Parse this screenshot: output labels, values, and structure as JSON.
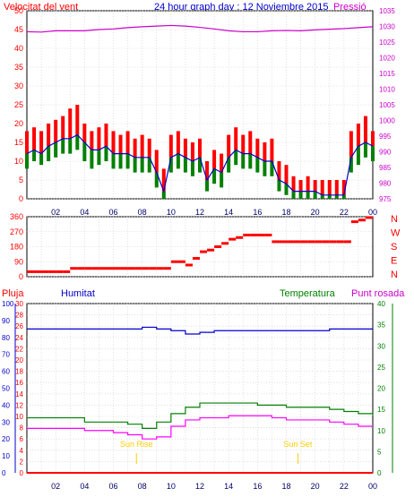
{
  "header": {
    "left_label": "Velocitat del vent",
    "center_title": "24 hour graph day : 12 Noviembre 2015",
    "right_label": "Pressió"
  },
  "bottom_header": {
    "rain_label": "Pluja",
    "humidity_label": "Humitat",
    "temperature_label": "Temperatura",
    "dewpoint_label": "Punt rosada"
  },
  "colors": {
    "wind": "#ff0000",
    "gust_high": "#ff0000",
    "wind_avg": "#0000cc",
    "wind_low": "#008000",
    "pressure": "#cc00cc",
    "direction": "#ff0000",
    "humidity": "#0000cc",
    "temperature": "#008000",
    "dewpoint": "#ff00ff",
    "rain": "#ff0000",
    "sun": "#ffcc00",
    "grid": "#cccccc"
  },
  "chart_data": [
    {
      "type": "line",
      "title": "24 hour graph day : 12 Noviembre 2015",
      "left_axis": {
        "label": "Velocitat del vent",
        "ylim": [
          0,
          50
        ],
        "ticks": [
          0,
          5,
          10,
          15,
          20,
          25,
          30,
          35,
          40,
          45,
          50
        ]
      },
      "right_axis": {
        "label": "Pressió",
        "ylim": [
          975,
          1035
        ],
        "ticks": [
          975,
          980,
          985,
          990,
          995,
          1000,
          1005,
          1010,
          1015,
          1020,
          1025,
          1030,
          1035
        ]
      },
      "x_ticks": [
        "02",
        "04",
        "06",
        "08",
        "10",
        "12",
        "14",
        "16",
        "18",
        "20",
        "22",
        "00"
      ],
      "series": [
        {
          "name": "",
          "key": "gust",
          "x": [
            0,
            0.5,
            1,
            1.5,
            2,
            2.5,
            3,
            3.5,
            4,
            4.5,
            5,
            5.5,
            6,
            6.5,
            7,
            7.5,
            8,
            8.5,
            9,
            9.5,
            10,
            10.5,
            11,
            11.5,
            12,
            12.5,
            13,
            13.5,
            14,
            14.5,
            15,
            15.5,
            16,
            16.5,
            17,
            17.5,
            18,
            18.5,
            19,
            19.5,
            20,
            20.5,
            21,
            21.5,
            22,
            22.5,
            23,
            23.5,
            24
          ],
          "y": [
            18,
            19,
            18,
            20,
            21,
            22,
            24,
            25,
            20,
            18,
            19,
            20,
            18,
            17,
            18,
            16,
            17,
            16,
            13,
            8,
            17,
            18,
            16,
            15,
            16,
            10,
            13,
            12,
            17,
            19,
            17,
            18,
            16,
            15,
            16,
            10,
            9,
            6,
            5,
            6,
            5,
            5,
            5,
            5,
            5,
            18,
            20,
            22,
            18
          ]
        },
        {
          "name": "",
          "key": "avg",
          "x": [
            0,
            0.5,
            1,
            1.5,
            2,
            2.5,
            3,
            3.5,
            4,
            4.5,
            5,
            5.5,
            6,
            6.5,
            7,
            7.5,
            8,
            8.5,
            9,
            9.5,
            10,
            10.5,
            11,
            11.5,
            12,
            12.5,
            13,
            13.5,
            14,
            14.5,
            15,
            15.5,
            16,
            16.5,
            17,
            17.5,
            18,
            18.5,
            19,
            19.5,
            20,
            20.5,
            21,
            21.5,
            22,
            22.5,
            23,
            23.5,
            24
          ],
          "y": [
            12,
            13,
            12,
            14,
            15,
            16,
            16,
            17,
            15,
            13,
            13,
            14,
            12,
            12,
            12,
            11,
            11,
            11,
            7,
            2,
            11,
            12,
            11,
            10,
            11,
            5,
            8,
            7,
            11,
            13,
            12,
            12,
            11,
            10,
            10,
            5,
            4,
            2,
            2,
            2,
            2,
            1,
            1,
            1,
            1,
            11,
            14,
            15,
            14
          ]
        },
        {
          "name": "",
          "key": "low",
          "x": [
            0,
            0.5,
            1,
            1.5,
            2,
            2.5,
            3,
            3.5,
            4,
            4.5,
            5,
            5.5,
            6,
            6.5,
            7,
            7.5,
            8,
            8.5,
            9,
            9.5,
            10,
            10.5,
            11,
            11.5,
            12,
            12.5,
            13,
            13.5,
            14,
            14.5,
            15,
            15.5,
            16,
            16.5,
            17,
            17.5,
            18,
            18.5,
            19,
            19.5,
            20,
            20.5,
            21,
            21.5,
            22,
            22.5,
            23,
            23.5,
            24
          ],
          "y": [
            8,
            10,
            9,
            10,
            11,
            12,
            12,
            13,
            10,
            8,
            9,
            10,
            8,
            8,
            8,
            7,
            7,
            7,
            3,
            0,
            7,
            8,
            7,
            6,
            7,
            2,
            4,
            3,
            7,
            9,
            8,
            8,
            7,
            6,
            6,
            2,
            1,
            0,
            0,
            0,
            0,
            0,
            0,
            0,
            0,
            7,
            9,
            11,
            10
          ]
        },
        {
          "name": "",
          "key": "pressure",
          "x": [
            0,
            1,
            2,
            3,
            4,
            5,
            6,
            7,
            8,
            9,
            10,
            11,
            12,
            13,
            14,
            15,
            16,
            17,
            18,
            19,
            20,
            21,
            22,
            23,
            24
          ],
          "y": [
            1028.3,
            1028.2,
            1028.6,
            1028.6,
            1028.6,
            1029.0,
            1029.2,
            1029.6,
            1029.9,
            1030.1,
            1030.3,
            1030.1,
            1029.7,
            1029.2,
            1028.6,
            1028.3,
            1028.3,
            1028.6,
            1028.7,
            1028.6,
            1028.9,
            1029.1,
            1029.3,
            1029.6,
            1029.9
          ]
        }
      ]
    },
    {
      "type": "scatter",
      "title": "",
      "left_axis": {
        "ylim": [
          0,
          360
        ],
        "ticks": [
          0,
          90,
          180,
          270,
          360
        ]
      },
      "right_axis": {
        "labels": [
          "N",
          "W",
          "S",
          "E",
          "N"
        ]
      },
      "series": [
        {
          "name": "",
          "key": "direction",
          "x": [
            0,
            0.5,
            1,
            1.5,
            2,
            2.5,
            3,
            3.5,
            4,
            4.5,
            5,
            5.5,
            6,
            6.5,
            7,
            7.5,
            8,
            8.5,
            9,
            9.5,
            10,
            10.5,
            11,
            11.5,
            12,
            12.5,
            13,
            13.5,
            14,
            14.5,
            15,
            15.5,
            16,
            16.5,
            17,
            17.5,
            18,
            18.5,
            19,
            19.5,
            20,
            20.5,
            21,
            21.5,
            22,
            22.5,
            23,
            23.5,
            24
          ],
          "y": [
            30,
            30,
            30,
            30,
            30,
            30,
            50,
            50,
            50,
            50,
            50,
            50,
            50,
            50,
            50,
            50,
            50,
            50,
            50,
            50,
            90,
            90,
            70,
            110,
            150,
            160,
            180,
            200,
            225,
            235,
            250,
            250,
            250,
            250,
            210,
            210,
            210,
            210,
            210,
            210,
            210,
            210,
            210,
            210,
            210,
            330,
            340,
            355,
            360
          ]
        }
      ]
    },
    {
      "type": "line",
      "title": "",
      "left_axis_rain": {
        "label": "Pluja",
        "ylim": [
          0,
          30
        ],
        "ticks": [
          0,
          2,
          4,
          6,
          8,
          10,
          12,
          14,
          16,
          18,
          20,
          22,
          24,
          26,
          28,
          30
        ]
      },
      "left_axis_humidity": {
        "label": "Humitat",
        "ylim": [
          0,
          100
        ],
        "ticks": [
          0,
          10,
          20,
          30,
          40,
          50,
          60,
          70,
          80,
          90,
          100
        ]
      },
      "right_axis": {
        "label": "Temperatura",
        "ylim": [
          0,
          40
        ],
        "ticks": [
          0,
          5,
          10,
          15,
          20,
          25,
          30,
          35,
          40
        ]
      },
      "annotations": [
        "Sun Rise",
        "Sun Set"
      ],
      "annotation_x": [
        7.6,
        18.8
      ],
      "series": [
        {
          "name": "Humitat",
          "key": "humidity",
          "x": [
            0,
            1,
            2,
            3,
            4,
            5,
            6,
            7,
            8,
            9,
            10,
            11,
            12,
            13,
            14,
            15,
            16,
            17,
            18,
            19,
            20,
            21,
            22,
            23,
            24
          ],
          "y": [
            85,
            85,
            85,
            85,
            85,
            85,
            85,
            85,
            86,
            85,
            84,
            82,
            83,
            84,
            84,
            84,
            84,
            84,
            84,
            84,
            84,
            85,
            85,
            85,
            85
          ]
        },
        {
          "name": "Temperatura",
          "key": "temperature",
          "x": [
            0,
            1,
            2,
            3,
            4,
            5,
            6,
            7,
            8,
            9,
            10,
            11,
            12,
            13,
            14,
            15,
            16,
            17,
            18,
            19,
            20,
            21,
            22,
            23,
            24
          ],
          "y": [
            13,
            13,
            13,
            13,
            12,
            12,
            12,
            11.5,
            10.5,
            12,
            14,
            15.5,
            16.5,
            16.5,
            16.5,
            16.5,
            16,
            16,
            15.5,
            15.5,
            15.5,
            15,
            14.5,
            14,
            13.5
          ]
        },
        {
          "name": "Punt rosada",
          "key": "dewpoint",
          "x": [
            0,
            1,
            2,
            3,
            4,
            5,
            6,
            7,
            8,
            9,
            10,
            11,
            12,
            13,
            14,
            15,
            16,
            17,
            18,
            19,
            20,
            21,
            22,
            23,
            24
          ],
          "y": [
            10.5,
            10.5,
            10.5,
            10.5,
            10,
            10,
            9.5,
            9,
            8,
            8.5,
            11,
            12.5,
            13,
            13,
            13.5,
            13.5,
            13.5,
            13,
            12.5,
            12.5,
            12.5,
            12,
            11.5,
            11,
            11
          ]
        },
        {
          "name": "Pluja",
          "key": "rain",
          "x": [
            0,
            24
          ],
          "y": [
            0,
            0
          ]
        }
      ]
    }
  ]
}
